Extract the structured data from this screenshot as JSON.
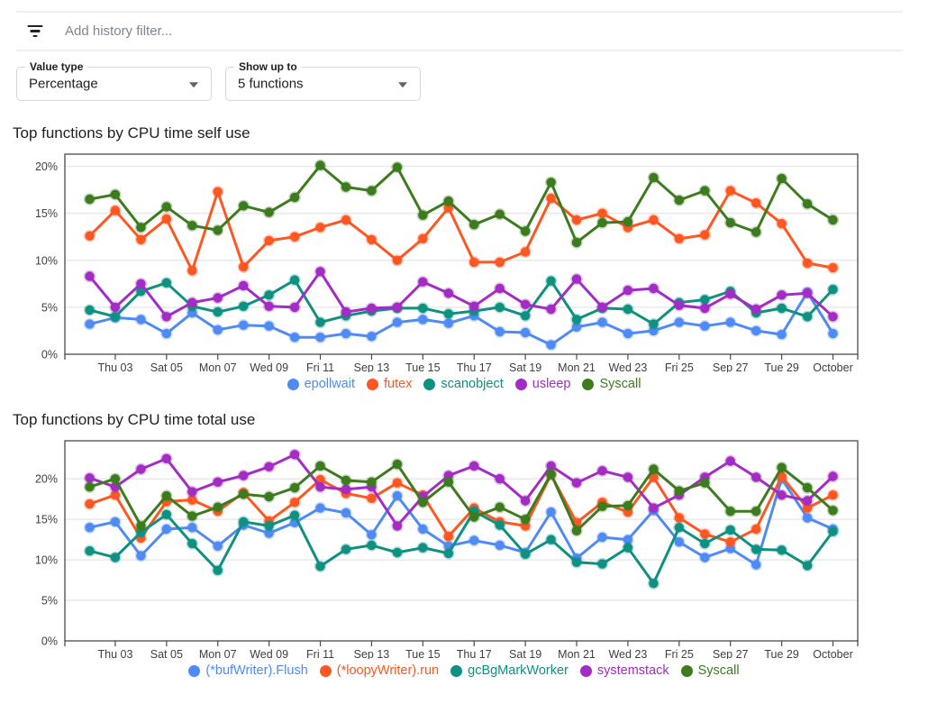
{
  "filter_bar": {
    "icon": "filter-list-icon",
    "placeholder": "Add history filter..."
  },
  "controls": {
    "value_type": {
      "label": "Value type",
      "value": "Percentage"
    },
    "show_up_to": {
      "label": "Show up to",
      "value": "5 functions"
    }
  },
  "colors": {
    "blue": "#4f8af5",
    "orange": "#ff5722",
    "teal": "#0e9180",
    "purple": "#a32cc4",
    "green": "#3c7c1f",
    "grid": "#e9e9e9",
    "plot_border": "#4a4a4a",
    "axis_text": "#3c4043"
  },
  "chart_data": [
    {
      "type": "line",
      "title": "Top functions by CPU time self use",
      "ylim": [
        0,
        21.3
      ],
      "yticks": [
        0,
        5,
        10,
        15,
        20
      ],
      "ytick_suffix": "%",
      "grid": true,
      "legend_position": "bottom",
      "categories": [
        "",
        "Thu 03",
        "",
        "Sat 05",
        "",
        "Mon 07",
        "",
        "Wed 09",
        "",
        "Fri 11",
        "",
        "Sep 13",
        "",
        "Tue 15",
        "",
        "Thu 17",
        "",
        "Sat 19",
        "",
        "Mon 21",
        "",
        "Wed 23",
        "",
        "Fri 25",
        "",
        "Sep 27",
        "",
        "Tue 29",
        "",
        "October"
      ],
      "series": [
        {
          "name": "epollwait",
          "color_key": "blue",
          "values": [
            3.2,
            3.9,
            3.7,
            2.2,
            4.4,
            2.6,
            3.1,
            3.0,
            1.8,
            1.8,
            2.2,
            1.9,
            3.4,
            3.7,
            3.3,
            4.1,
            2.4,
            2.3,
            1.0,
            2.9,
            3.4,
            2.2,
            2.5,
            3.4,
            3.0,
            3.4,
            2.5,
            2.1,
            6.6,
            2.2
          ]
        },
        {
          "name": "futex",
          "color_key": "orange",
          "values": [
            12.6,
            15.3,
            12.2,
            14.4,
            8.9,
            17.3,
            9.3,
            12.1,
            12.5,
            13.5,
            14.3,
            12.2,
            10.0,
            12.3,
            15.6,
            9.8,
            9.8,
            10.9,
            16.6,
            14.3,
            15.0,
            13.5,
            14.3,
            12.3,
            12.7,
            17.4,
            16.1,
            13.9,
            9.7,
            9.2
          ]
        },
        {
          "name": "scanobject",
          "color_key": "teal",
          "values": [
            4.7,
            4.0,
            6.7,
            7.6,
            5.1,
            4.5,
            5.1,
            6.3,
            7.9,
            3.4,
            4.1,
            4.6,
            4.9,
            4.9,
            4.3,
            4.6,
            5.0,
            4.1,
            7.8,
            3.7,
            4.9,
            4.8,
            3.2,
            5.5,
            5.8,
            6.7,
            4.4,
            4.9,
            4.0,
            6.9
          ]
        },
        {
          "name": "usleep",
          "color_key": "purple",
          "values": [
            8.3,
            5.0,
            7.5,
            4.0,
            5.5,
            6.0,
            7.3,
            5.1,
            5.0,
            8.8,
            4.5,
            4.9,
            5.0,
            7.7,
            6.5,
            5.1,
            7.0,
            5.3,
            4.8,
            8.0,
            5.0,
            6.8,
            7.0,
            5.2,
            4.9,
            6.4,
            4.8,
            6.3,
            6.5,
            4.0
          ]
        },
        {
          "name": "Syscall",
          "color_key": "green",
          "values": [
            16.5,
            17.0,
            13.5,
            15.7,
            13.7,
            13.2,
            15.8,
            15.1,
            16.7,
            20.1,
            17.8,
            17.4,
            19.9,
            14.8,
            16.3,
            13.8,
            14.9,
            13.1,
            18.3,
            11.9,
            14.0,
            14.1,
            18.8,
            16.4,
            17.4,
            14.0,
            13.0,
            18.7,
            16.0,
            14.3
          ]
        }
      ]
    },
    {
      "type": "line",
      "title": "Top functions by CPU time total use",
      "ylim": [
        0,
        24.7
      ],
      "yticks": [
        0,
        5,
        10,
        15,
        20
      ],
      "ytick_suffix": "%",
      "grid": true,
      "legend_position": "bottom",
      "categories": [
        "",
        "Thu 03",
        "",
        "Sat 05",
        "",
        "Mon 07",
        "",
        "Wed 09",
        "",
        "Fri 11",
        "",
        "Sep 13",
        "",
        "Tue 15",
        "",
        "Thu 17",
        "",
        "Sat 19",
        "",
        "Mon 21",
        "",
        "Wed 23",
        "",
        "Fri 25",
        "",
        "Sep 27",
        "",
        "Tue 29",
        "",
        "October"
      ],
      "series": [
        {
          "name": "(*bufWriter).Flush",
          "color_key": "blue",
          "values": [
            14.0,
            14.7,
            10.5,
            13.8,
            14.0,
            11.7,
            14.3,
            13.3,
            14.6,
            16.4,
            15.8,
            13.1,
            17.9,
            13.8,
            11.7,
            12.4,
            11.8,
            10.9,
            15.9,
            10.2,
            12.8,
            12.5,
            16.1,
            12.2,
            10.3,
            11.4,
            9.4,
            20.0,
            15.2,
            13.8
          ]
        },
        {
          "name": "(*loopyWriter).run",
          "color_key": "orange",
          "values": [
            16.9,
            18.0,
            12.7,
            17.2,
            17.4,
            16.0,
            18.3,
            14.8,
            17.1,
            19.9,
            18.2,
            17.6,
            19.5,
            18.0,
            12.9,
            16.4,
            14.7,
            14.2,
            20.5,
            14.6,
            17.1,
            15.9,
            20.2,
            15.2,
            13.2,
            12.2,
            13.8,
            20.3,
            16.4,
            18.0
          ]
        },
        {
          "name": "gcBgMarkWorker",
          "color_key": "teal",
          "values": [
            11.1,
            10.3,
            13.4,
            15.6,
            12.0,
            8.7,
            14.7,
            14.2,
            15.5,
            9.2,
            11.3,
            11.8,
            10.9,
            11.5,
            10.8,
            16.0,
            14.3,
            10.7,
            12.5,
            9.7,
            9.5,
            11.5,
            7.1,
            14.0,
            12.0,
            13.7,
            11.3,
            11.2,
            9.3,
            13.5
          ]
        },
        {
          "name": "systemstack",
          "color_key": "purple",
          "values": [
            20.1,
            19.0,
            21.2,
            22.5,
            18.4,
            19.6,
            20.4,
            21.5,
            23.0,
            19.0,
            18.7,
            19.0,
            14.2,
            17.8,
            20.4,
            21.6,
            20.0,
            17.3,
            21.6,
            19.5,
            21.0,
            20.2,
            16.4,
            18.0,
            20.2,
            22.2,
            20.2,
            18.0,
            17.3,
            20.3
          ]
        },
        {
          "name": "Syscall",
          "color_key": "green",
          "values": [
            19.0,
            20.0,
            14.2,
            17.9,
            15.4,
            16.5,
            18.1,
            17.8,
            18.9,
            21.6,
            19.8,
            19.6,
            21.8,
            17.1,
            19.6,
            15.3,
            16.5,
            15.0,
            20.6,
            13.6,
            16.6,
            16.7,
            21.2,
            18.5,
            19.5,
            16.0,
            16.0,
            21.4,
            18.9,
            16.1
          ]
        }
      ]
    }
  ]
}
